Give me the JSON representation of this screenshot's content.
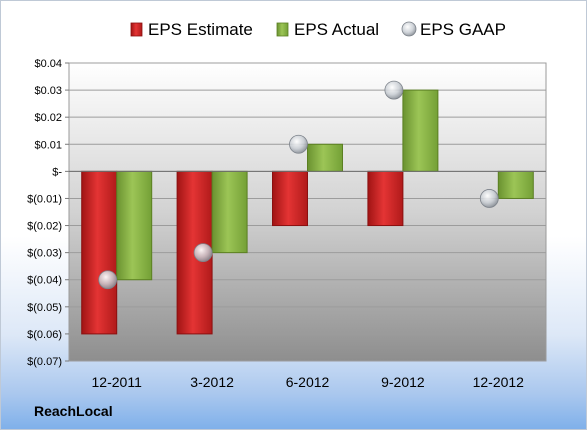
{
  "brand": "ReachLocal",
  "colors": {
    "estimate": "#cc2020",
    "actual": "#84b03e",
    "gaap": "#c8cdd3",
    "plot_top": "#ffffff",
    "plot_bottom": "#8e8e8e"
  },
  "chart_data": {
    "type": "bar",
    "categories": [
      "12-2011",
      "3-2012",
      "6-2012",
      "9-2012",
      "12-2012"
    ],
    "series": [
      {
        "name": "EPS Estimate",
        "values": [
          -0.06,
          -0.06,
          -0.02,
          -0.02,
          null
        ]
      },
      {
        "name": "EPS Actual",
        "values": [
          -0.04,
          -0.03,
          0.01,
          0.03,
          -0.01
        ]
      },
      {
        "name": "EPS GAAP",
        "values": [
          -0.04,
          -0.03,
          0.01,
          0.03,
          -0.01
        ],
        "marker": "circle"
      }
    ],
    "ylim": [
      -0.07,
      0.04
    ],
    "yticks": [
      0.04,
      0.03,
      0.02,
      0.01,
      0,
      -0.01,
      -0.02,
      -0.03,
      -0.04,
      -0.05,
      -0.06,
      -0.07
    ],
    "ytick_labels": [
      "$0.04",
      "$0.03",
      "$0.02",
      "$0.01",
      "$-",
      "$(0.01)",
      "$(0.02)",
      "$(0.03)",
      "$(0.04)",
      "$(0.05)",
      "$(0.06)",
      "$(0.07)"
    ],
    "legend": "top",
    "grid": true
  }
}
